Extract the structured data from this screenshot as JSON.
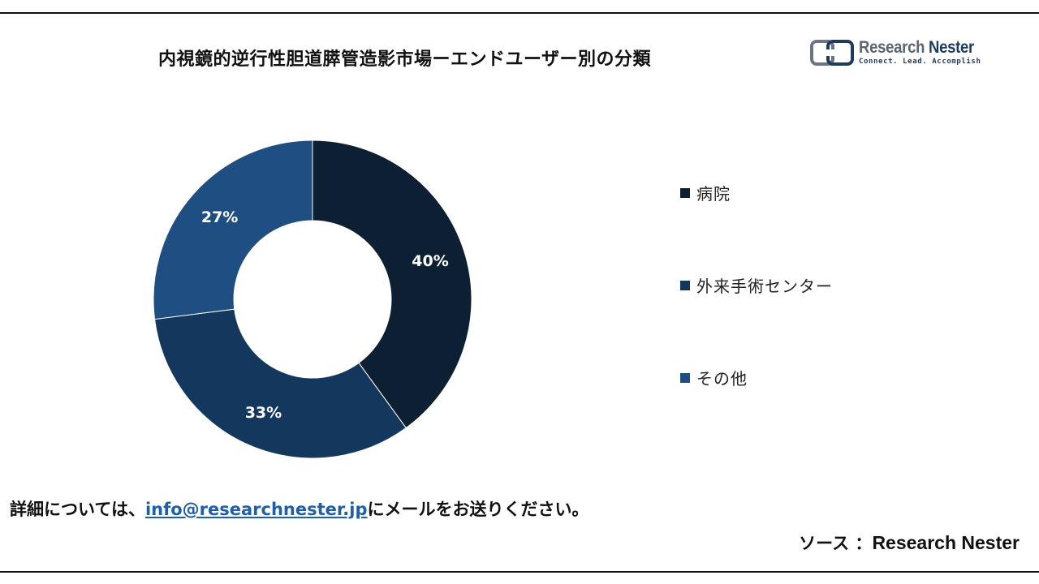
{
  "chart_data": {
    "type": "pie",
    "variant": "donut",
    "title": "内視鏡的逆行性胆道膵管造影市場ーエンドユーザー別の分類",
    "categories": [
      "病院",
      "外来手術センター",
      "その他"
    ],
    "values": [
      40,
      33,
      27
    ],
    "labels": [
      "40%",
      "33%",
      "27%"
    ],
    "colors": [
      "#0c1f33",
      "#14375d",
      "#1f4e82"
    ],
    "legend_position": "right"
  },
  "logo": {
    "name_part1": "Research",
    "name_part2": "Nester",
    "tagline": "Connect. Lead. Accomplish"
  },
  "footer": {
    "prefix": "詳細については、",
    "email": "info@researchnester.jp",
    "suffix": "にメールをお送りください。"
  },
  "source": {
    "label": "ソース ：",
    "name": "Research Nester"
  }
}
